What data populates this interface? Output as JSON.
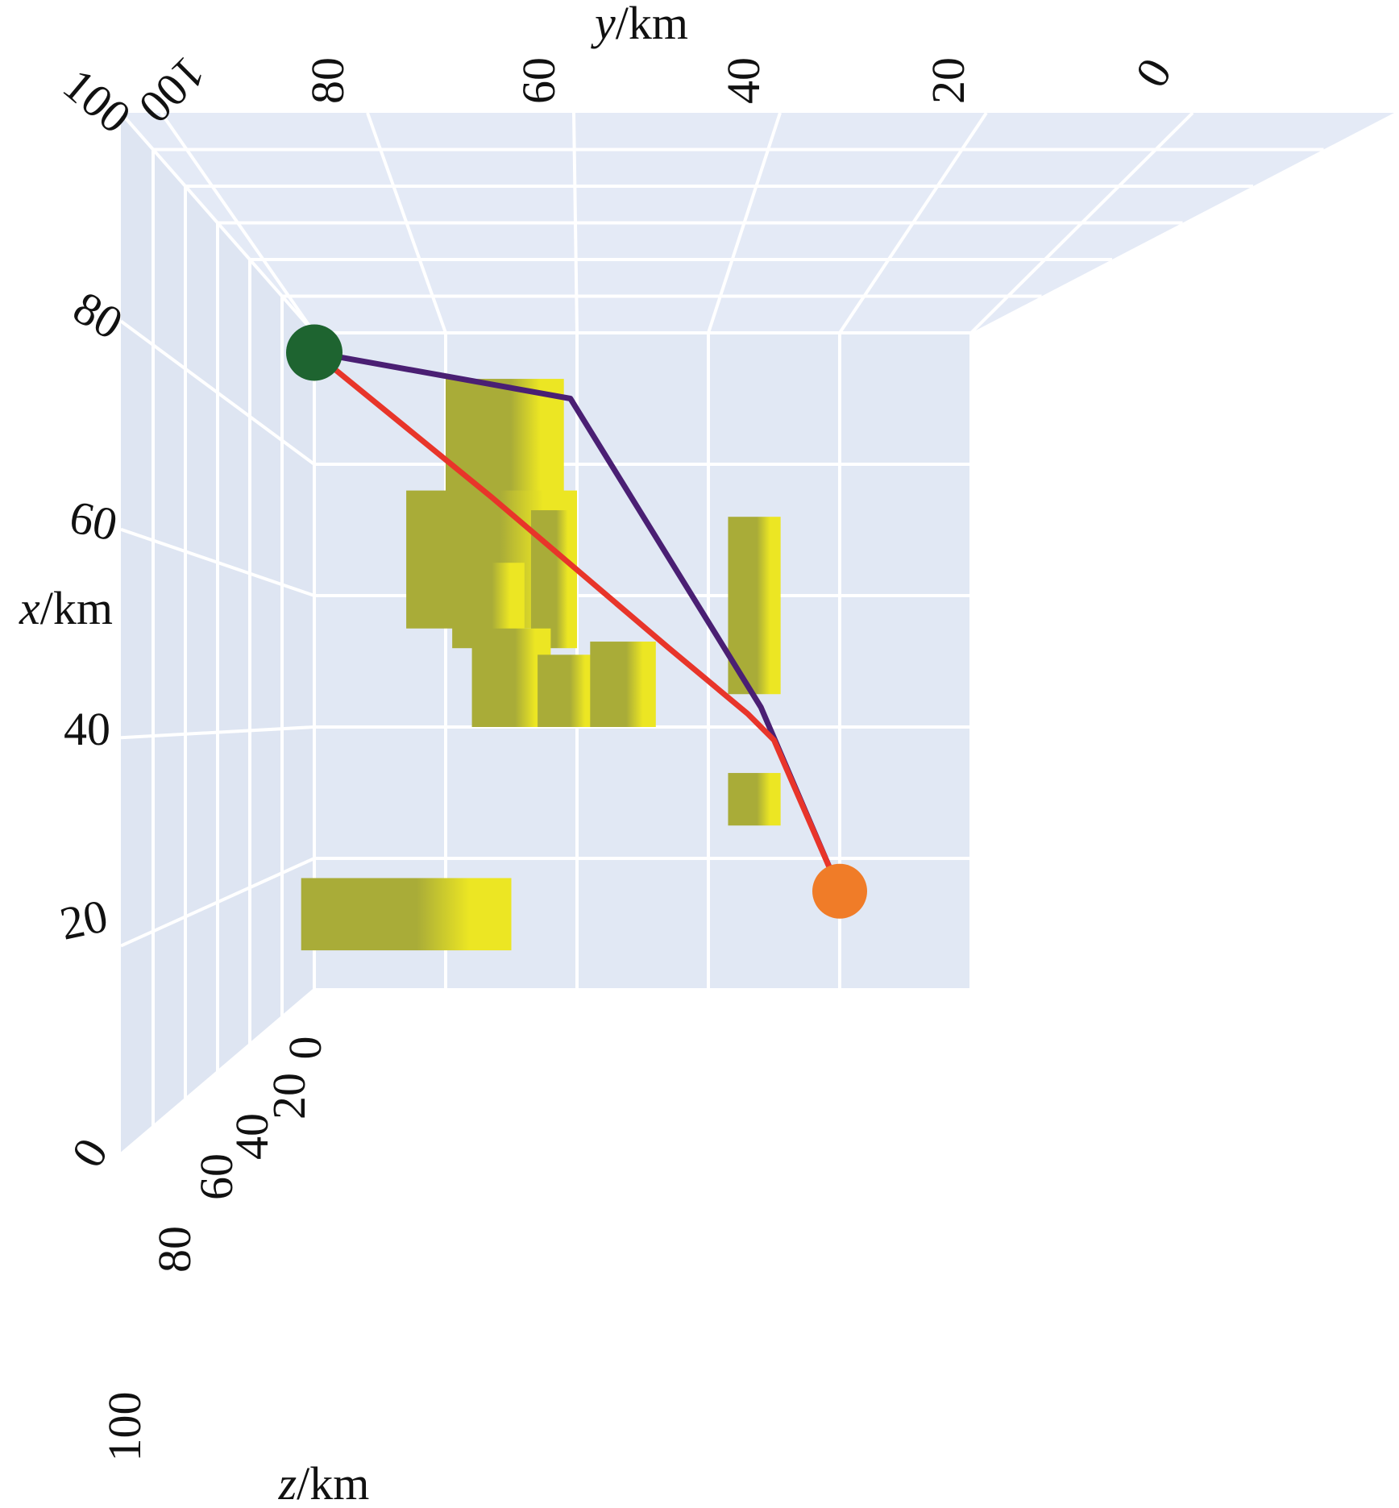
{
  "chart_data": {
    "type": "line",
    "title": "",
    "colors": {
      "pane": "#e1e8f4",
      "grid": "#ffffff",
      "obstacle_light": "#ece623",
      "obstacle_dark": "#a9ac38",
      "path_1": "#4a1f73",
      "path_2": "#e8352a",
      "start_marker": "#1e6430",
      "end_marker": "#f07c28"
    },
    "axes": {
      "x": {
        "name": "x",
        "unit": "km",
        "range": [
          0,
          100
        ],
        "ticks": [
          "0",
          "20",
          "40",
          "60",
          "80",
          "100"
        ]
      },
      "y": {
        "name": "y",
        "unit": "km",
        "range": [
          0,
          100
        ],
        "ticks": [
          "0",
          "20",
          "40",
          "60",
          "80",
          "100"
        ]
      },
      "z": {
        "name": "z",
        "unit": "km",
        "range": [
          0,
          100
        ],
        "ticks": [
          "0",
          "20",
          "40",
          "60",
          "80",
          "100"
        ]
      }
    },
    "grid": true,
    "start_point": {
      "x": 97,
      "y": 100
    },
    "end_point": {
      "x": 15,
      "y": 20
    },
    "series": [
      {
        "color": "#4a1f73",
        "points": [
          {
            "x": 97,
            "y": 100
          },
          {
            "x": 90,
            "y": 61
          },
          {
            "x": 43,
            "y": 32
          },
          {
            "x": 15,
            "y": 20
          }
        ]
      },
      {
        "color": "#e8352a",
        "points": [
          {
            "x": 97,
            "y": 100
          },
          {
            "x": 75,
            "y": 73
          },
          {
            "x": 52,
            "y": 46
          },
          {
            "x": 42,
            "y": 34
          },
          {
            "x": 38,
            "y": 30
          },
          {
            "x": 15,
            "y": 20
          }
        ]
      }
    ],
    "obstacles": [
      {
        "x": [
          71,
          93
        ],
        "y": [
          62,
          80
        ]
      },
      {
        "x": [
          55,
          76
        ],
        "y": [
          60,
          86
        ]
      },
      {
        "x": [
          52,
          65
        ],
        "y": [
          68,
          79
        ]
      },
      {
        "x": [
          52,
          73
        ],
        "y": [
          60,
          67
        ]
      },
      {
        "x": [
          40,
          55
        ],
        "y": [
          64,
          76
        ]
      },
      {
        "x": [
          40,
          51
        ],
        "y": [
          57,
          66
        ]
      },
      {
        "x": [
          40,
          53
        ],
        "y": [
          48,
          58
        ]
      },
      {
        "x": [
          45,
          72
        ],
        "y": [
          29,
          37
        ]
      },
      {
        "x": [
          25,
          33
        ],
        "y": [
          29,
          37
        ]
      },
      {
        "x": [
          6,
          17
        ],
        "y": [
          70,
          102
        ]
      }
    ],
    "labels": {
      "x_axis": {
        "var": "x",
        "unit": "/km"
      },
      "y_axis": {
        "var": "y",
        "unit": "/km"
      },
      "z_axis": {
        "var": "z",
        "unit": "/km"
      }
    }
  }
}
